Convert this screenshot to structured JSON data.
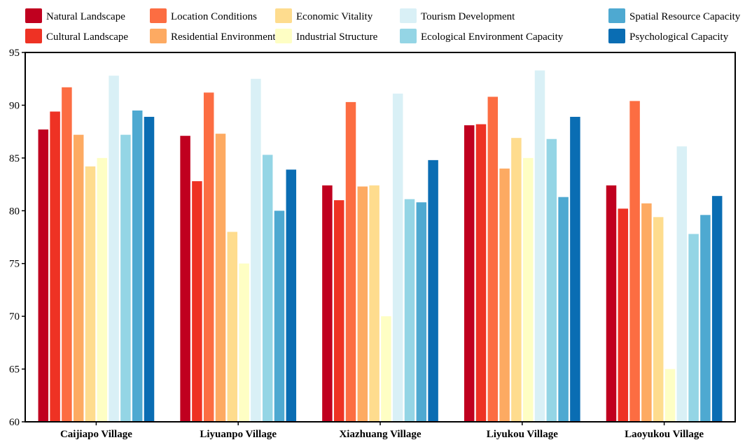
{
  "chart_data": {
    "type": "bar",
    "categories": [
      "Caijiapo Village",
      "Liyuanpo Village",
      "Xiazhuang Village",
      "Liyukou Village",
      "Laoyukou Village"
    ],
    "series": [
      {
        "name": "Natural Landscape",
        "color": "#c0001f",
        "values": [
          87.7,
          87.1,
          82.4,
          88.1,
          82.4
        ]
      },
      {
        "name": "Cultural Landscape",
        "color": "#ee3224",
        "values": [
          89.4,
          82.8,
          81.0,
          88.2,
          80.2
        ]
      },
      {
        "name": "Location Conditions",
        "color": "#fc6d42",
        "values": [
          91.7,
          91.2,
          90.3,
          90.8,
          90.4
        ]
      },
      {
        "name": "Residential Environment",
        "color": "#fdaa62",
        "values": [
          87.2,
          87.3,
          82.3,
          84.0,
          80.7
        ]
      },
      {
        "name": "Economic Vitality",
        "color": "#fedc8e",
        "values": [
          84.2,
          78.0,
          82.4,
          86.9,
          79.4
        ]
      },
      {
        "name": "Industrial Structure",
        "color": "#fefec4",
        "values": [
          85.0,
          75.0,
          70.0,
          85.0,
          65.0
        ]
      },
      {
        "name": "Tourism Development",
        "color": "#d9f0f6",
        "values": [
          92.8,
          92.5,
          91.1,
          93.3,
          86.1
        ]
      },
      {
        "name": "Ecological Environment Capacity",
        "color": "#94d5e5",
        "values": [
          87.2,
          85.3,
          81.1,
          86.8,
          77.8
        ]
      },
      {
        "name": "Spatial Resource Capacity",
        "color": "#4ea9d1",
        "values": [
          89.5,
          80.0,
          80.8,
          81.3,
          79.6
        ]
      },
      {
        "name": "Psychological Capacity",
        "color": "#0a6db3",
        "values": [
          88.9,
          83.9,
          84.8,
          88.9,
          81.4
        ]
      }
    ],
    "yticks": [
      "60",
      "65",
      "70",
      "75",
      "80",
      "85",
      "90",
      "95"
    ],
    "ylim": [
      60,
      95
    ],
    "title": "",
    "xlabel": "",
    "ylabel": "",
    "legend_position": "top",
    "grid": false
  }
}
